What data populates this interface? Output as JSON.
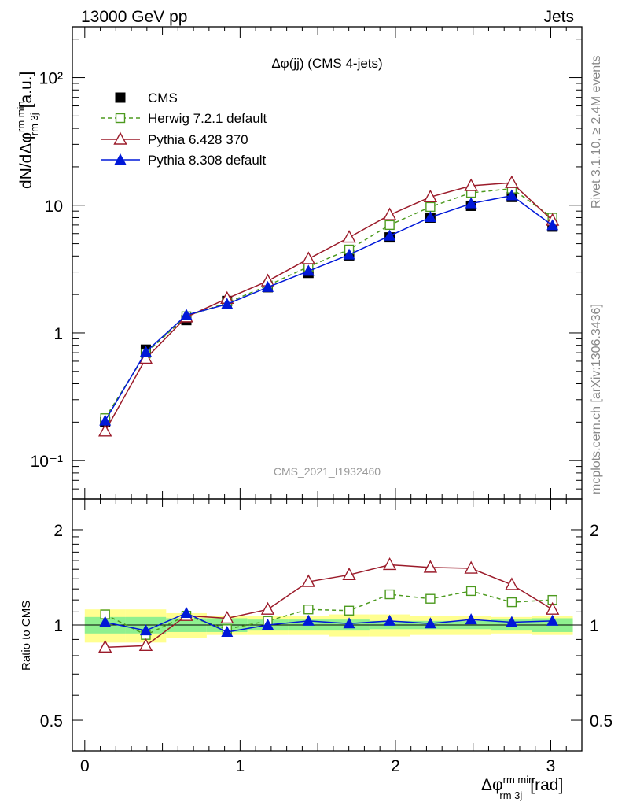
{
  "header": {
    "left": "13000 GeV pp",
    "right": "Jets"
  },
  "side_labels": {
    "rivet": "Rivet 3.1.10, ≥ 2.4M events",
    "mcplots": "mcplots.cern.ch [arXiv:1306.3436]"
  },
  "chart_data": {
    "type": "line",
    "title": "Δφ(jj) (CMS 4-jets)",
    "watermark": "CMS_2021_I1932460",
    "xlabel": "Δφ",
    "xlabel_sup": "rm min",
    "xlabel_sub": "rm 3j",
    "xlabel_unit": "[rad]",
    "ylabel": "dN/dΔφ",
    "ylabel_sup": "rm min",
    "ylabel_sub": "rm 3j",
    "ylabel_unit": "[a.u.]",
    "ratio_ylabel": "Ratio to CMS",
    "xlim": [
      -0.08,
      3.2
    ],
    "ylim": [
      0.05,
      250
    ],
    "ratio_ylim": [
      0.4,
      2.5
    ],
    "x_ticks": [
      "0",
      "1",
      "2",
      "3"
    ],
    "y_ticks": [
      "10⁻¹",
      "1",
      "10",
      "10²"
    ],
    "ratio_y_ticks": [
      "0.5",
      "1",
      "2"
    ],
    "x": [
      0.131,
      0.393,
      0.654,
      0.916,
      1.178,
      1.44,
      1.702,
      1.963,
      2.225,
      2.487,
      2.749,
      3.011
    ],
    "x_edges": [
      0,
      0.262,
      0.524,
      0.785,
      1.047,
      1.309,
      1.571,
      1.833,
      2.094,
      2.356,
      2.618,
      2.88,
      3.142
    ],
    "series": [
      {
        "name": "CMS",
        "color": "#000000",
        "marker": "square-filled",
        "values": [
          0.2,
          0.74,
          1.26,
          1.78,
          2.28,
          2.95,
          4.05,
          5.6,
          8.0,
          9.9,
          11.6,
          6.8
        ],
        "ratio": [
          1,
          1,
          1,
          1,
          1,
          1,
          1,
          1,
          1,
          1,
          1,
          1
        ]
      },
      {
        "name": "Herwig 7.2.1 default",
        "color": "#4d9a1f",
        "marker": "square-open",
        "dash": "dashed",
        "values": [
          0.215,
          0.69,
          1.35,
          1.72,
          2.35,
          3.3,
          4.5,
          7.0,
          9.7,
          12.5,
          13.5,
          8.0
        ],
        "ratio": [
          1.08,
          0.93,
          1.07,
          0.97,
          1.03,
          1.12,
          1.11,
          1.25,
          1.21,
          1.28,
          1.18,
          1.2
        ]
      },
      {
        "name": "Pythia 6.428 370",
        "color": "#9b1b2a",
        "marker": "triangle-open",
        "values": [
          0.17,
          0.63,
          1.33,
          1.86,
          2.55,
          3.8,
          5.6,
          8.4,
          11.6,
          14.2,
          15.0,
          7.6
        ],
        "ratio": [
          0.85,
          0.86,
          1.07,
          1.05,
          1.12,
          1.37,
          1.44,
          1.55,
          1.52,
          1.51,
          1.34,
          1.12
        ]
      },
      {
        "name": "Pythia 8.308 default",
        "color": "#0018d8",
        "marker": "triangle-filled",
        "values": [
          0.205,
          0.71,
          1.38,
          1.68,
          2.28,
          3.05,
          4.1,
          5.75,
          8.05,
          10.3,
          11.9,
          6.95
        ],
        "ratio": [
          1.02,
          0.96,
          1.09,
          0.95,
          1.0,
          1.03,
          1.01,
          1.03,
          1.01,
          1.04,
          1.02,
          1.03
        ]
      }
    ],
    "ratio_error_bands": {
      "stat_color": "#8ff08f",
      "total_color": "#ffff90",
      "stat": [
        0.06,
        0.06,
        0.05,
        0.05,
        0.04,
        0.04,
        0.04,
        0.03,
        0.03,
        0.03,
        0.04,
        0.05
      ],
      "total": [
        0.12,
        0.12,
        0.09,
        0.07,
        0.07,
        0.07,
        0.08,
        0.08,
        0.07,
        0.07,
        0.06,
        0.07
      ]
    }
  }
}
